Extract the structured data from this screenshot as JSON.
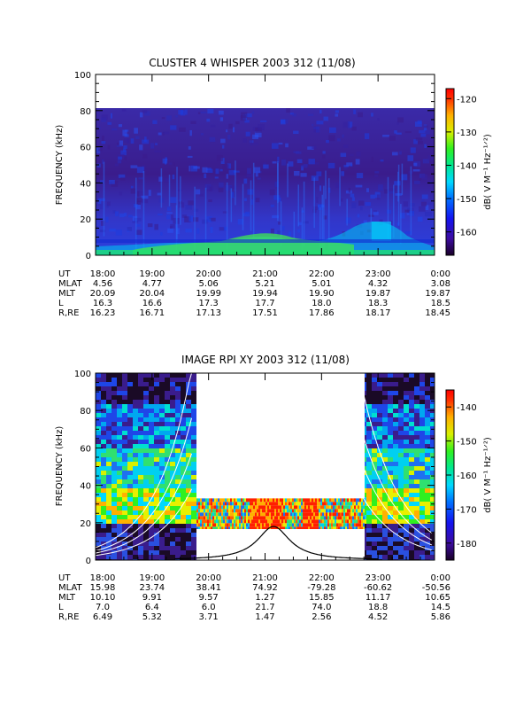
{
  "chart_data": [
    {
      "type": "heatmap",
      "title": "CLUSTER 4 WHISPER 2003 312 (11/08)",
      "ylabel": "FREQUENCY (kHz)",
      "ylim": [
        0,
        100
      ],
      "yticks": [
        "0",
        "20",
        "40",
        "60",
        "80",
        "100"
      ],
      "data_ceiling_khz": 80,
      "colorbar": {
        "label": "dB( V M⁻¹ Hz⁻¹ᐟ²)",
        "range": [
          -167,
          -117
        ],
        "ticks": [
          "-120",
          "-130",
          "-140",
          "-150",
          "-160"
        ]
      },
      "ephemeris": {
        "row_labels": [
          "UT",
          "MLAT",
          "MLT",
          "L",
          "R,RE"
        ],
        "columns": [
          [
            "18:00",
            "4.56",
            "20.09",
            "16.3",
            "16.23"
          ],
          [
            "19:00",
            "4.77",
            "20.04",
            "16.6",
            "16.71"
          ],
          [
            "20:00",
            "5.06",
            "19.99",
            "17.3",
            "17.13"
          ],
          [
            "21:00",
            "5.21",
            "19.94",
            "17.7",
            "17.51"
          ],
          [
            "22:00",
            "5.01",
            "19.90",
            "18.0",
            "17.86"
          ],
          [
            "23:00",
            "4.32",
            "19.87",
            "18.3",
            "18.17"
          ],
          [
            "0:00",
            "3.08",
            "19.87",
            "18.5",
            "18.45"
          ]
        ]
      }
    },
    {
      "type": "heatmap",
      "title": "IMAGE RPI XY 2003 312 (11/08)",
      "ylabel": "FREQUENCY (kHz)",
      "ylim": [
        0,
        100
      ],
      "yticks": [
        "0",
        "20",
        "40",
        "60",
        "80",
        "100"
      ],
      "colorbar": {
        "label": "dB( V M⁻¹ Hz⁻¹ᐟ²)",
        "range": [
          -185,
          -135
        ],
        "ticks": [
          "-140",
          "-150",
          "-160",
          "-170",
          "-180"
        ]
      },
      "ephemeris": {
        "row_labels": [
          "UT",
          "MLAT",
          "MLT",
          "L",
          "R,RE"
        ],
        "columns": [
          [
            "18:00",
            "15.98",
            "10.10",
            "7.0",
            "6.49"
          ],
          [
            "19:00",
            "23.74",
            "9.91",
            "6.4",
            "5.32"
          ],
          [
            "20:00",
            "38.41",
            "9.57",
            "6.0",
            "3.71"
          ],
          [
            "21:00",
            "74.92",
            "1.27",
            "21.7",
            "1.47"
          ],
          [
            "22:00",
            "-79.28",
            "15.85",
            "74.0",
            "2.56"
          ],
          [
            "23:00",
            "-60.62",
            "11.17",
            "18.8",
            "4.52"
          ],
          [
            "0:00",
            "-50.56",
            "10.65",
            "14.5",
            "5.86"
          ]
        ]
      },
      "data_gap_hours": [
        [
          19.75,
          22.65
        ]
      ],
      "data_band_khz": [
        16,
        33
      ],
      "curve_peak": {
        "ut_hours": 21.15,
        "khz": 18
      }
    }
  ]
}
